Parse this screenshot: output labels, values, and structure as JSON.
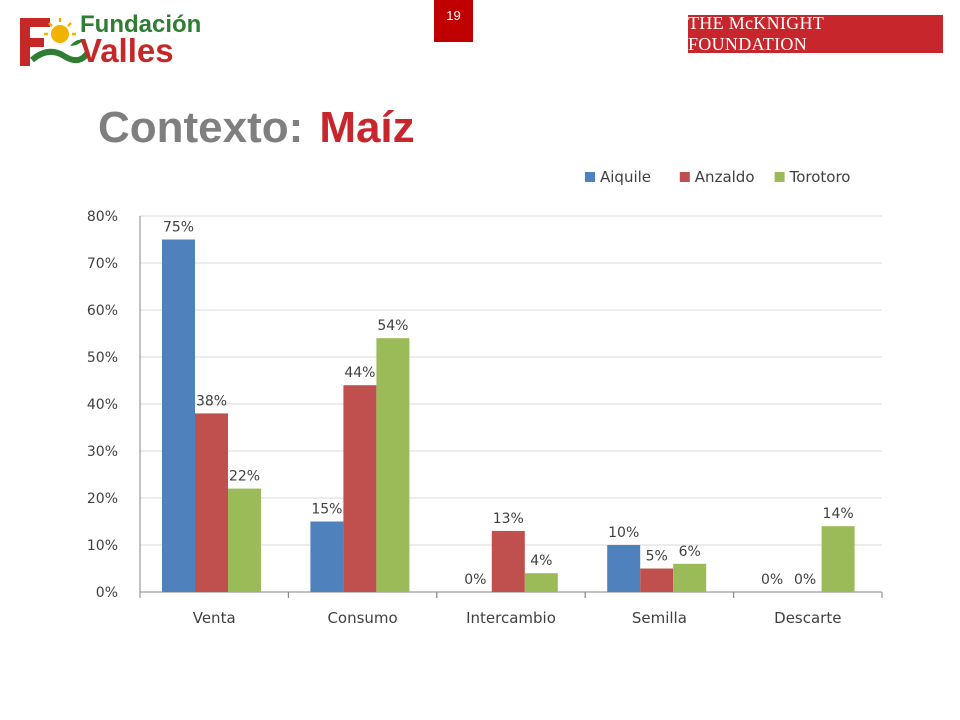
{
  "header": {
    "brand_line1": "Fundación",
    "brand_line2": "Valles",
    "page_number": "19",
    "sponsor": "THE McKNIGHT FOUNDATION"
  },
  "title": {
    "part1": "Contexto:",
    "part2": "Maíz"
  },
  "colors": {
    "Aiquile": "#4f81bd",
    "Anzaldo": "#c0504d",
    "Torotoro": "#9bbb59"
  },
  "chart_data": {
    "type": "bar",
    "categories": [
      "Venta",
      "Consumo",
      "Intercambio",
      "Semilla",
      "Descarte"
    ],
    "series": [
      {
        "name": "Aiquile",
        "values": [
          75,
          15,
          0,
          10,
          0
        ],
        "labels": [
          "75%",
          "15%",
          "0%",
          "10%",
          "0%"
        ]
      },
      {
        "name": "Anzaldo",
        "values": [
          38,
          44,
          13,
          5,
          0
        ],
        "labels": [
          "38%",
          "44%",
          "13%",
          "5%",
          "0%"
        ]
      },
      {
        "name": "Torotoro",
        "values": [
          22,
          54,
          4,
          6,
          14
        ],
        "labels": [
          "22%",
          "54%",
          "4%",
          "6%",
          "14%"
        ]
      }
    ],
    "ylim": [
      0,
      80
    ],
    "yticks": [
      "0%",
      "10%",
      "20%",
      "30%",
      "40%",
      "50%",
      "60%",
      "70%",
      "80%"
    ],
    "grid": true,
    "legend_position": "top-right"
  }
}
